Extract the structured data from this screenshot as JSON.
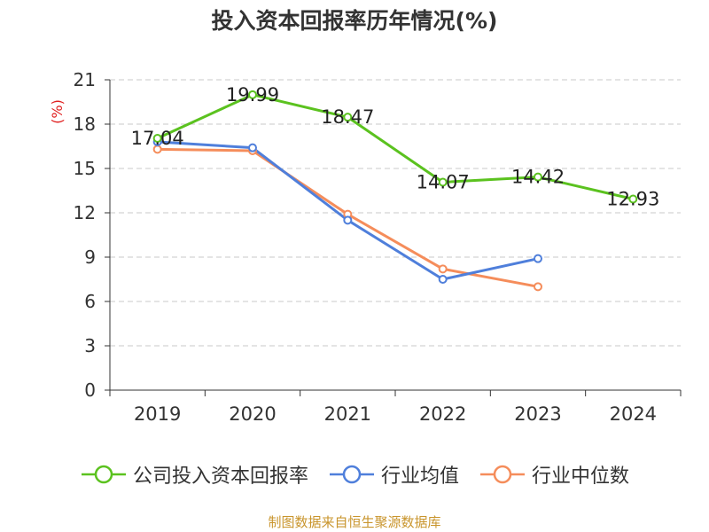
{
  "title": "投入资本回报率历年情况(%)",
  "source": "制图数据来自恒生聚源数据库",
  "chart_data": {
    "type": "line",
    "title": "投入资本回报率历年情况(%)",
    "ylabel": "(%)",
    "ylim": [
      0,
      21
    ],
    "yticks": [
      0,
      3,
      6,
      9,
      12,
      15,
      18,
      21
    ],
    "grid": true,
    "legend_position": "bottom",
    "categories": [
      "2019",
      "2020",
      "2021",
      "2022",
      "2023",
      "2024"
    ],
    "series": [
      {
        "name": "公司投入资本回报率",
        "color": "#5bc21f",
        "values": [
          17.04,
          19.99,
          18.47,
          14.07,
          14.42,
          12.93
        ],
        "labels": [
          "17.04",
          "19.99",
          "18.47",
          "14.07",
          "14.42",
          "12.93"
        ]
      },
      {
        "name": "行业均值",
        "color": "#4f7fdb",
        "values": [
          16.8,
          16.4,
          11.5,
          7.5,
          8.9,
          null
        ]
      },
      {
        "name": "行业中位数",
        "color": "#f58d5b",
        "values": [
          16.3,
          16.2,
          11.9,
          8.2,
          7.0,
          null
        ]
      }
    ]
  }
}
